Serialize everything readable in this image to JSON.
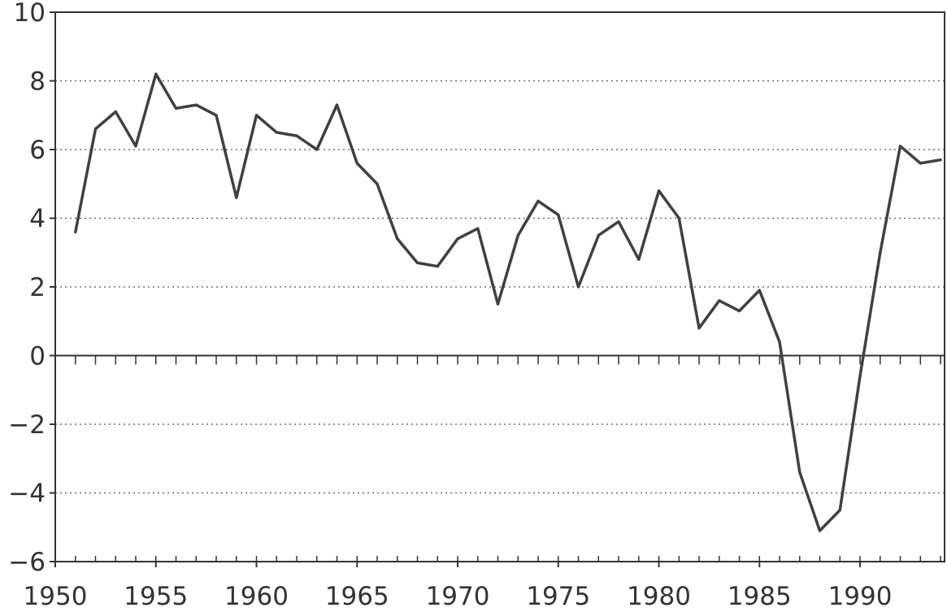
{
  "chart_data": {
    "type": "line",
    "title": "",
    "xlabel": "",
    "ylabel": "",
    "xlim": [
      1950,
      1994.2
    ],
    "ylim": [
      -6,
      10
    ],
    "x_ticks": [
      1950,
      1955,
      1960,
      1965,
      1970,
      1975,
      1980,
      1985,
      1990
    ],
    "x_tick_labels": [
      "1950",
      "1955",
      "1960",
      "1965",
      "1970",
      "1975",
      "1980",
      "1985",
      "1990"
    ],
    "y_ticks": [
      10,
      8,
      6,
      4,
      2,
      0,
      -2,
      -4,
      -6
    ],
    "y_tick_labels": [
      "10",
      "8",
      "6",
      "4",
      "2",
      "0",
      "−2",
      "−4",
      "−6"
    ],
    "gridlines": "horizontal dotted",
    "series": [
      {
        "color": "#404040",
        "x": [
          1951,
          1952,
          1953,
          1954,
          1955,
          1956,
          1957,
          1958,
          1959,
          1960,
          1961,
          1962,
          1963,
          1964,
          1965,
          1966,
          1967,
          1968,
          1969,
          1970,
          1971,
          1972,
          1973,
          1974,
          1975,
          1976,
          1977,
          1978,
          1979,
          1980,
          1981,
          1982,
          1983,
          1984,
          1985,
          1986,
          1987,
          1988,
          1989,
          1990,
          1991,
          1992,
          1993,
          1994
        ],
        "values": [
          3.6,
          6.6,
          7.1,
          6.1,
          8.2,
          7.2,
          7.3,
          7.0,
          4.6,
          7.0,
          6.5,
          6.4,
          6.0,
          7.3,
          5.6,
          5.0,
          3.4,
          2.7,
          2.6,
          3.4,
          3.7,
          1.5,
          3.5,
          4.5,
          4.1,
          2.0,
          3.5,
          3.9,
          2.8,
          4.8,
          4.0,
          0.8,
          1.6,
          1.3,
          1.9,
          0.4,
          -3.4,
          -5.1,
          -4.5,
          -0.6,
          3.0,
          6.1,
          5.6,
          5.7
        ]
      }
    ]
  }
}
